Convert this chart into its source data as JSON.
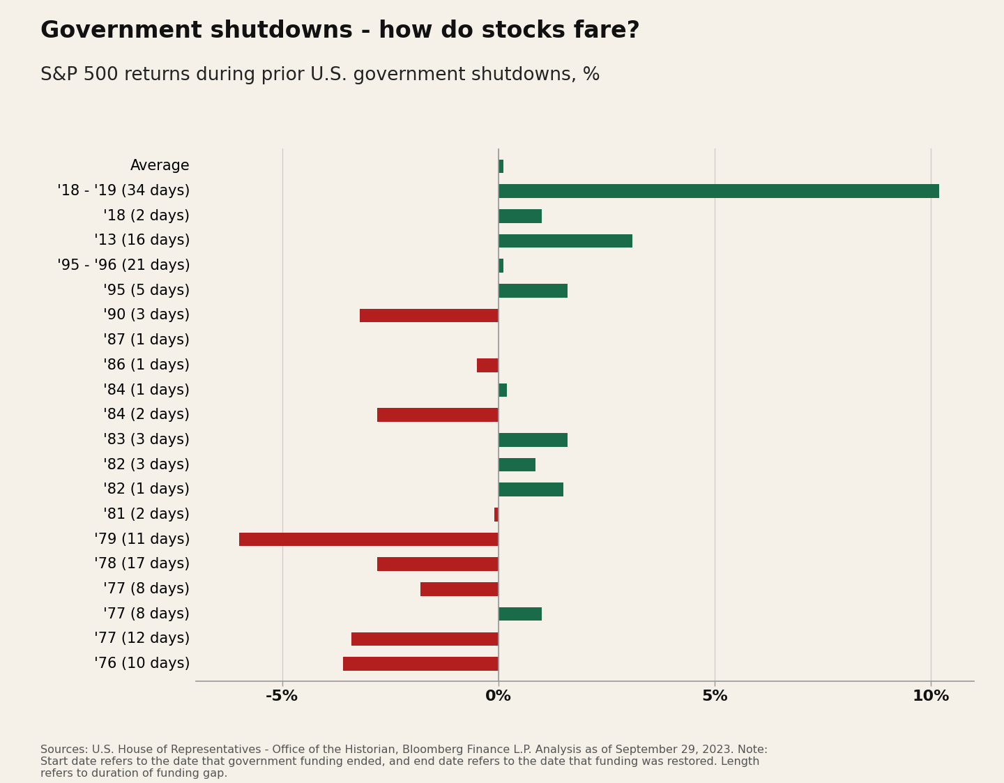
{
  "title": "Government shutdowns - how do stocks fare?",
  "subtitle": "S&P 500 returns during prior U.S. government shutdowns, %",
  "source_text": "Sources: U.S. House of Representatives - Office of the Historian, Bloomberg Finance L.P. Analysis as of September 29, 2023. Note:\nStart date refers to the date that government funding ended, and end date refers to the date that funding was restored. Length\nrefers to duration of funding gap.",
  "categories": [
    "Average",
    "'18 - '19 (34 days)",
    "'18 (2 days)",
    "'13 (16 days)",
    "'95 - '96 (21 days)",
    "'95 (5 days)",
    "'90 (3 days)",
    "'87 (1 days)",
    "'86 (1 days)",
    "'84 (1 days)",
    "'84 (2 days)",
    "'83 (3 days)",
    "'82 (3 days)",
    "'82 (1 days)",
    "'81 (2 days)",
    "'79 (11 days)",
    "'78 (17 days)",
    "'77 (8 days)",
    "'77 (8 days)",
    "'77 (12 days)",
    "'76 (10 days)"
  ],
  "values": [
    0.12,
    10.2,
    1.0,
    3.1,
    0.12,
    1.6,
    -3.2,
    0.0,
    -0.5,
    0.2,
    -2.8,
    1.6,
    0.85,
    1.5,
    -0.1,
    -6.0,
    -2.8,
    -1.8,
    1.0,
    -3.4,
    -3.6
  ],
  "positive_color": "#1a6b4a",
  "negative_color": "#b31f1f",
  "background_color": "#f5f0e8",
  "xlim": [
    -7,
    11
  ],
  "xticks": [
    -5,
    0,
    5,
    10
  ],
  "xticklabels": [
    "-5%",
    "0%",
    "5%",
    "10%"
  ],
  "title_fontsize": 24,
  "subtitle_fontsize": 19,
  "label_fontsize": 15,
  "tick_fontsize": 16,
  "source_fontsize": 11.5,
  "bar_height": 0.55
}
